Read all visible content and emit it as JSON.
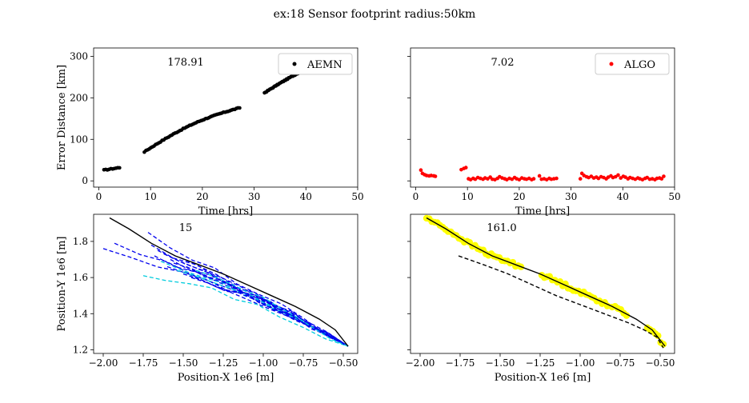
{
  "figure": {
    "suptitle": "ex:18  Sensor footprint radius:50km"
  },
  "chart_data": [
    {
      "id": "top-left",
      "type": "scatter",
      "title": "",
      "annotation": "178.91",
      "xlabel": "Time [hrs]",
      "ylabel": "Error Distance [km]",
      "xlim": [
        -1,
        50
      ],
      "ylim": [
        -15,
        320
      ],
      "xticks": [
        0,
        10,
        20,
        30,
        40,
        50
      ],
      "yticks": [
        0,
        100,
        200,
        300
      ],
      "show_xticklabels": true,
      "show_yticklabels": true,
      "legend": {
        "position": "upper-right"
      },
      "series": [
        {
          "name": "AEMN",
          "color": "#000000",
          "marker": "dot",
          "segments": [
            {
              "x_start": 1.0,
              "x_end": 4.0,
              "y_start": 26,
              "y_end": 32,
              "n": 10
            },
            {
              "x_start": 8.8,
              "x_end": 27.2,
              "y_start": 70,
              "y_end": 176,
              "n": 60
            },
            {
              "x_start": 32.0,
              "x_end": 48.0,
              "y_start": 212,
              "y_end": 303,
              "n": 80
            }
          ]
        }
      ]
    },
    {
      "id": "top-right",
      "type": "scatter",
      "title": "",
      "annotation": "7.02",
      "xlabel": "Time [hrs]",
      "ylabel": "",
      "xlim": [
        -1,
        50
      ],
      "ylim": [
        -15,
        320
      ],
      "xticks": [
        0,
        10,
        20,
        30,
        40,
        50
      ],
      "yticks": [
        0,
        100,
        200,
        300
      ],
      "show_xticklabels": true,
      "show_yticklabels": false,
      "legend": {
        "position": "upper-right"
      },
      "series": [
        {
          "name": "ALGO",
          "color": "#ff0000",
          "marker": "dot",
          "points": [
            [
              1.0,
              26
            ],
            [
              1.3,
              18
            ],
            [
              1.7,
              15
            ],
            [
              2.1,
              13
            ],
            [
              2.6,
              12
            ],
            [
              3.0,
              13
            ],
            [
              3.5,
              12
            ],
            [
              3.8,
              11
            ],
            [
              8.8,
              27
            ],
            [
              9.3,
              30
            ],
            [
              9.7,
              32
            ],
            [
              10.2,
              5
            ],
            [
              10.6,
              3
            ],
            [
              11.1,
              6
            ],
            [
              11.5,
              4
            ],
            [
              12.0,
              8
            ],
            [
              12.5,
              6
            ],
            [
              13.0,
              4
            ],
            [
              13.4,
              7
            ],
            [
              13.9,
              5
            ],
            [
              14.4,
              9
            ],
            [
              14.8,
              4
            ],
            [
              15.3,
              3
            ],
            [
              15.8,
              6
            ],
            [
              16.2,
              10
            ],
            [
              16.7,
              7
            ],
            [
              17.2,
              5
            ],
            [
              17.6,
              3
            ],
            [
              18.1,
              6
            ],
            [
              18.6,
              4
            ],
            [
              19.1,
              8
            ],
            [
              19.5,
              5
            ],
            [
              20.0,
              3
            ],
            [
              20.5,
              7
            ],
            [
              21.0,
              5
            ],
            [
              21.4,
              4
            ],
            [
              21.9,
              6
            ],
            [
              22.4,
              3
            ],
            [
              22.8,
              5
            ],
            [
              23.9,
              12
            ],
            [
              24.3,
              4
            ],
            [
              24.8,
              5
            ],
            [
              25.3,
              3
            ],
            [
              25.8,
              6
            ],
            [
              26.2,
              4
            ],
            [
              26.7,
              5
            ],
            [
              27.2,
              6
            ],
            [
              31.8,
              5
            ],
            [
              32.1,
              18
            ],
            [
              32.5,
              13
            ],
            [
              33.0,
              10
            ],
            [
              33.4,
              8
            ],
            [
              33.9,
              11
            ],
            [
              34.4,
              7
            ],
            [
              34.9,
              9
            ],
            [
              35.3,
              6
            ],
            [
              35.8,
              10
            ],
            [
              36.3,
              8
            ],
            [
              36.8,
              5
            ],
            [
              37.2,
              9
            ],
            [
              37.7,
              12
            ],
            [
              38.1,
              8
            ],
            [
              38.6,
              10
            ],
            [
              39.1,
              14
            ],
            [
              39.6,
              7
            ],
            [
              40.1,
              11
            ],
            [
              40.5,
              9
            ],
            [
              41.0,
              5
            ],
            [
              41.4,
              8
            ],
            [
              41.9,
              6
            ],
            [
              42.4,
              4
            ],
            [
              42.9,
              7
            ],
            [
              43.3,
              5
            ],
            [
              43.8,
              3
            ],
            [
              44.3,
              6
            ],
            [
              44.7,
              8
            ],
            [
              45.2,
              4
            ],
            [
              45.7,
              5
            ],
            [
              46.2,
              3
            ],
            [
              46.6,
              6
            ],
            [
              47.1,
              7
            ],
            [
              47.5,
              5
            ],
            [
              47.9,
              11
            ]
          ]
        }
      ]
    },
    {
      "id": "bottom-left",
      "type": "line",
      "title": "",
      "annotation": "15",
      "xlabel": "Position-X 1e6 [m]",
      "ylabel": "Position-Y 1e6 [m]",
      "xlim": [
        -2.06,
        -0.41
      ],
      "ylim": [
        1.18,
        1.95
      ],
      "xticks": [
        -2.0,
        -1.75,
        -1.5,
        -1.25,
        -1.0,
        -0.75,
        -0.5
      ],
      "xticklabels": [
        "−2.00",
        "−1.75",
        "−1.50",
        "−1.25",
        "−1.00",
        "−0.75",
        "−0.50"
      ],
      "yticks": [
        1.2,
        1.4,
        1.6,
        1.8
      ],
      "yticklabels": [
        "1.2",
        "1.4",
        "1.6",
        "1.8"
      ],
      "show_xticklabels": true,
      "show_yticklabels": true,
      "truth": {
        "color": "#000000",
        "x": [
          -1.96,
          -1.84,
          -1.7,
          -1.55,
          -1.4,
          -1.25,
          -1.1,
          -0.95,
          -0.8,
          -0.65,
          -0.55,
          -0.47
        ],
        "y": [
          1.93,
          1.87,
          1.79,
          1.72,
          1.67,
          1.62,
          1.56,
          1.5,
          1.44,
          1.37,
          1.31,
          1.22
        ]
      },
      "tracks": {
        "color": "#0000ee",
        "cyan": "#00ccdd",
        "count": 18,
        "end": [
          -0.47,
          1.22
        ],
        "starts": [
          [
            -2.0,
            1.76
          ],
          [
            -1.93,
            1.79
          ],
          [
            -1.75,
            1.61
          ],
          [
            -1.72,
            1.85
          ],
          [
            -1.7,
            1.78
          ],
          [
            -1.68,
            1.72
          ],
          [
            -1.66,
            1.75
          ],
          [
            -1.64,
            1.69
          ],
          [
            -1.62,
            1.73
          ],
          [
            -1.6,
            1.66
          ],
          [
            -1.58,
            1.7
          ],
          [
            -1.56,
            1.68
          ],
          [
            -1.54,
            1.64
          ],
          [
            -1.52,
            1.71
          ],
          [
            -1.5,
            1.62
          ],
          [
            -1.48,
            1.66
          ],
          [
            -1.45,
            1.6
          ],
          [
            -1.42,
            1.64
          ]
        ]
      }
    },
    {
      "id": "bottom-right",
      "type": "line",
      "title": "",
      "annotation": "161.0",
      "xlabel": "Position-X 1e6 [m]",
      "ylabel": "",
      "xlim": [
        -2.06,
        -0.41
      ],
      "ylim": [
        1.18,
        1.95
      ],
      "xticks": [
        -2.0,
        -1.75,
        -1.5,
        -1.25,
        -1.0,
        -0.75,
        -0.5
      ],
      "xticklabels": [
        "−2.00",
        "−1.75",
        "−1.50",
        "−1.25",
        "−1.00",
        "−0.75",
        "−0.50"
      ],
      "yticks": [
        1.2,
        1.4,
        1.6,
        1.8
      ],
      "show_xticklabels": true,
      "show_yticklabels": false,
      "truth": {
        "color": "#000000",
        "x": [
          -1.96,
          -1.84,
          -1.7,
          -1.55,
          -1.4,
          -1.25,
          -1.1,
          -0.95,
          -0.8,
          -0.65,
          -0.55,
          -0.47
        ],
        "y": [
          1.93,
          1.87,
          1.79,
          1.72,
          1.67,
          1.62,
          1.56,
          1.5,
          1.44,
          1.37,
          1.31,
          1.22
        ]
      },
      "estimate": {
        "color": "#000000",
        "style": "dashed",
        "x": [
          -1.76,
          -1.6,
          -1.45,
          -1.3,
          -1.15,
          -1.0,
          -0.85,
          -0.7,
          -0.6,
          -0.52,
          -0.48
        ],
        "y": [
          1.72,
          1.67,
          1.62,
          1.56,
          1.5,
          1.45,
          1.4,
          1.35,
          1.31,
          1.27,
          1.21
        ]
      },
      "detections": {
        "color": "#ffff00",
        "x_segments": [
          [
            -1.96,
            -1.37
          ],
          [
            -1.24,
            -0.83
          ],
          [
            -0.8,
            -0.71
          ],
          [
            -0.58,
            -0.48
          ]
        ]
      }
    }
  ]
}
